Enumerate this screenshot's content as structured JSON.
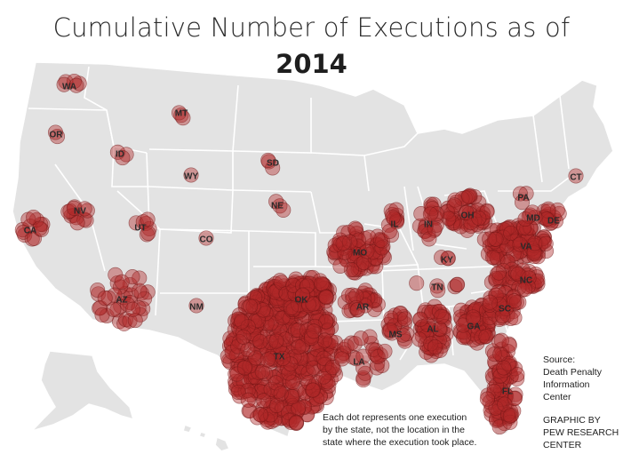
{
  "title": {
    "line1": "Cumulative Number of Executions as of",
    "line2": "2014"
  },
  "note": {
    "lines": [
      "Each dot represents one execution",
      "by the state, not the location in the",
      "state where the execution took place."
    ]
  },
  "source": {
    "lines": [
      "Source:",
      "Death Penalty",
      "Information",
      "Center"
    ]
  },
  "credit": {
    "lines": [
      "GRAPHIC BY",
      "PEW RESEARCH",
      "CENTER"
    ]
  },
  "colors": {
    "land": "#e3e3e3",
    "border": "#ffffff",
    "dot": "#b02828"
  },
  "states": [
    {
      "code": "TX",
      "executions": 515
    },
    {
      "code": "OK",
      "executions": 111
    },
    {
      "code": "VA",
      "executions": 110
    },
    {
      "code": "FL",
      "executions": 89
    },
    {
      "code": "MO",
      "executions": 80
    },
    {
      "code": "AL",
      "executions": 56
    },
    {
      "code": "GA",
      "executions": 58
    },
    {
      "code": "OH",
      "executions": 53
    },
    {
      "code": "NC",
      "executions": 43
    },
    {
      "code": "SC",
      "executions": 43
    },
    {
      "code": "AZ",
      "executions": 37
    },
    {
      "code": "LA",
      "executions": 28
    },
    {
      "code": "AR",
      "executions": 27
    },
    {
      "code": "MS",
      "executions": 21
    },
    {
      "code": "IN",
      "executions": 20
    },
    {
      "code": "DE",
      "executions": 16
    },
    {
      "code": "CA",
      "executions": 13
    },
    {
      "code": "IL",
      "executions": 12
    },
    {
      "code": "NV",
      "executions": 12
    },
    {
      "code": "UT",
      "executions": 7
    },
    {
      "code": "TN",
      "executions": 6
    },
    {
      "code": "MD",
      "executions": 5
    },
    {
      "code": "WA",
      "executions": 5
    },
    {
      "code": "NE",
      "executions": 3
    },
    {
      "code": "KY",
      "executions": 3
    },
    {
      "code": "MT",
      "executions": 3
    },
    {
      "code": "PA",
      "executions": 3
    },
    {
      "code": "SD",
      "executions": 3
    },
    {
      "code": "OR",
      "executions": 2
    },
    {
      "code": "ID",
      "executions": 3
    },
    {
      "code": "NM",
      "executions": 1
    },
    {
      "code": "CO",
      "executions": 1
    },
    {
      "code": "WY",
      "executions": 1
    },
    {
      "code": "CT",
      "executions": 1
    }
  ]
}
